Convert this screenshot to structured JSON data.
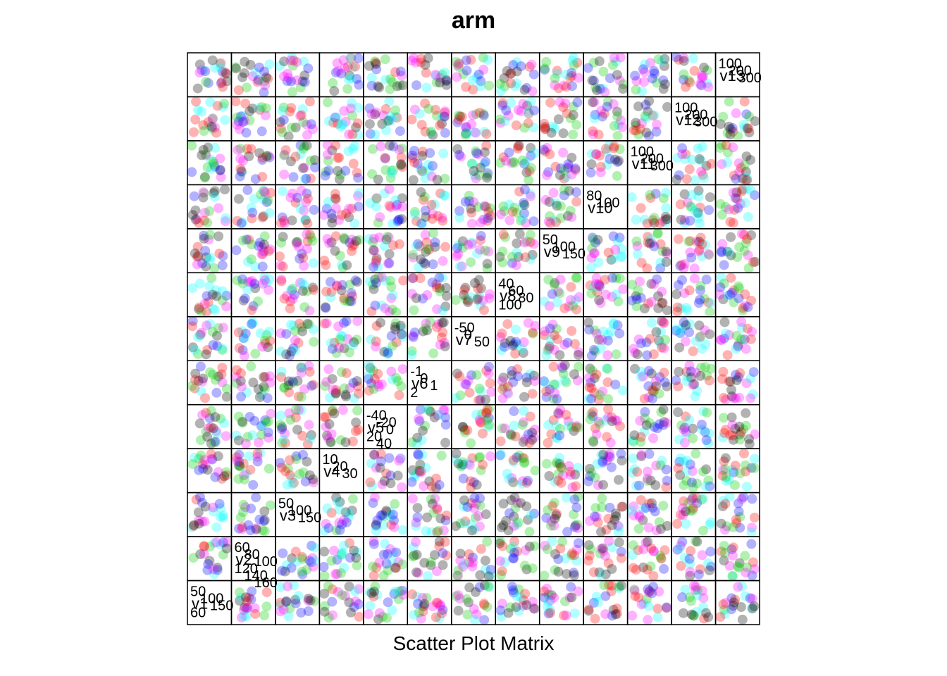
{
  "chart_data": {
    "type": "scatter",
    "title": "arm",
    "xlabel": "Scatter Plot Matrix",
    "ylabel": "",
    "grid": false,
    "legend": "none",
    "n_vars": 13,
    "variables": [
      "v1",
      "v2",
      "v3",
      "v4",
      "v5",
      "v6",
      "v7",
      "v8",
      "v9",
      "v10",
      "v11",
      "v12",
      "v13"
    ],
    "diagonal_tick_labels": [
      [
        "50",
        "100",
        "150",
        "60"
      ],
      [
        "60",
        "80",
        "100",
        "120",
        "140",
        "160"
      ],
      [
        "50",
        "100",
        "150"
      ],
      [
        "10",
        "20",
        "30"
      ],
      [
        "-40",
        "-20",
        "0",
        "20",
        "40"
      ],
      [
        "-1",
        "0",
        "1",
        "2"
      ],
      [
        "-50",
        "0",
        "50"
      ],
      [
        "40",
        "60",
        "80",
        "100"
      ],
      [
        "50",
        "100",
        "150"
      ],
      [
        "80",
        "100"
      ],
      [
        "100",
        "200",
        "300"
      ],
      [
        "100",
        "200",
        "300"
      ],
      [
        "100",
        "200",
        "300"
      ]
    ],
    "point_colors": [
      "#ff0000",
      "#00cc00",
      "#0000ff",
      "#00ffff",
      "#000000",
      "#ff00ff"
    ],
    "points_per_panel": 20
  }
}
